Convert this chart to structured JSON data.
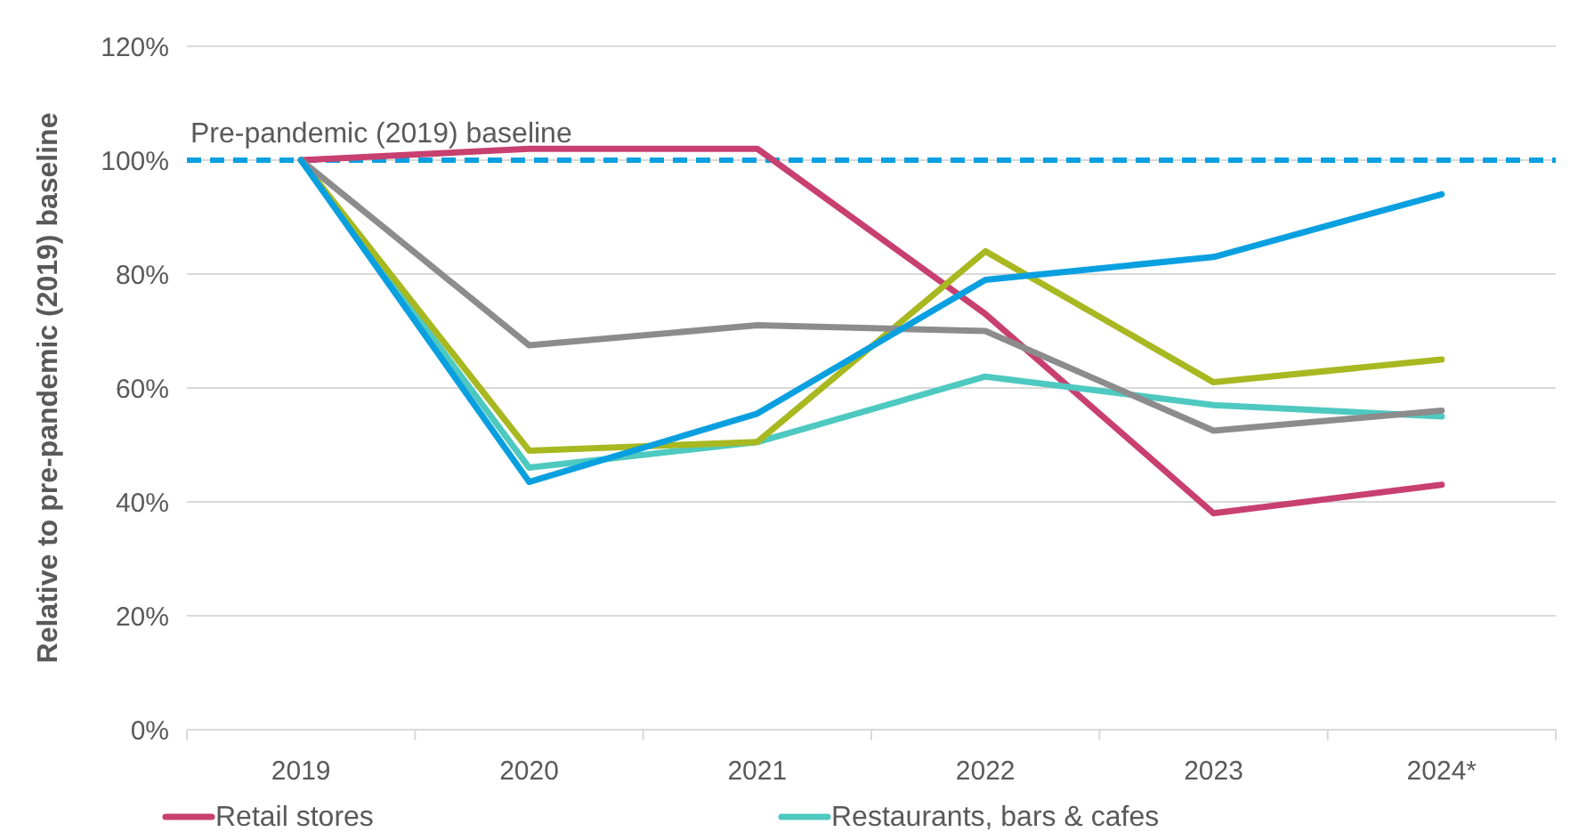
{
  "chart_data": {
    "type": "line",
    "ylabel": "Relative to pre-pandemic (2019) baseline",
    "categories": [
      "2019",
      "2020",
      "2021",
      "2022",
      "2023",
      "2024*"
    ],
    "series": [
      {
        "name": "Retail stores",
        "color": "#c8406f",
        "values": [
          100,
          102,
          102,
          73,
          38,
          43
        ]
      },
      {
        "name": "Restaurants, bars & cafes",
        "color": "#4ec9c0",
        "values": [
          100,
          46,
          50.5,
          62,
          57,
          55
        ]
      },
      {
        "color": "#a8b820",
        "values": [
          100,
          49,
          50.5,
          84,
          61,
          65
        ]
      },
      {
        "color": "#8c8c8c",
        "values": [
          100,
          67.5,
          71,
          70,
          52.5,
          56
        ]
      },
      {
        "color": "#0aa0e0",
        "values": [
          100,
          43.5,
          55.5,
          79,
          83,
          94
        ]
      }
    ],
    "ylim": [
      0,
      120
    ],
    "yticks": [
      {
        "value": 0,
        "label": "0%"
      },
      {
        "value": 20,
        "label": "20%"
      },
      {
        "value": 40,
        "label": "40%"
      },
      {
        "value": 60,
        "label": "60%"
      },
      {
        "value": 80,
        "label": "80%"
      },
      {
        "value": 100,
        "label": "100%"
      },
      {
        "value": 120,
        "label": "120%"
      }
    ],
    "ref_lines": [
      {
        "axis": "y",
        "value": 100,
        "label": "Pre-pandemic (2019) baseline",
        "color": "#0aa0e0",
        "line_style": "dashed"
      }
    ],
    "grid": "y",
    "legend": "bottom",
    "marker": "none",
    "line_style": "solid"
  }
}
